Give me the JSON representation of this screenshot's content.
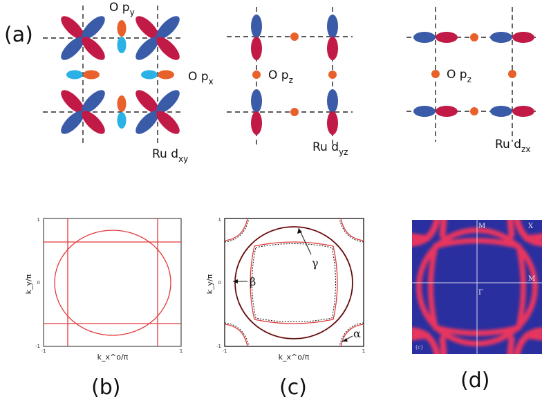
{
  "panel_labels": {
    "a": "(a)",
    "b": "(b)",
    "c": "(c)",
    "d": "(d)"
  },
  "orbitals": {
    "dxy": {
      "op_y": "O p",
      "op_y_sub": "y",
      "op_x": "O p",
      "op_x_sub": "x",
      "ru": "Ru d",
      "ru_sub": "xy"
    },
    "dyz": {
      "op_z": "O p",
      "op_z_sub": "z",
      "ru": "Ru d",
      "ru_sub": "yz"
    },
    "dzx": {
      "op_z": "O p",
      "op_z_sub": "z",
      "ru": "Ru d",
      "ru_sub": "zx"
    }
  },
  "plot_b": {
    "ylabel": "k_y/π",
    "xlabel": "k_x^o/π",
    "tick_min": "-1",
    "tick_zero": "0",
    "tick_max": "1"
  },
  "plot_c": {
    "ylabel": "k_y/π",
    "xlabel": "k_x^o/π",
    "tick_min": "-1",
    "tick_zero": "0",
    "tick_max": "1",
    "labels": {
      "gamma": "γ",
      "beta": "β",
      "alpha": "α"
    }
  },
  "plot_d": {
    "labels": {
      "M_top": "M",
      "X": "X",
      "Gamma": "Γ",
      "M_right": "M",
      "corner": "(c)"
    }
  },
  "colors": {
    "blue": "#3a5ba8",
    "red": "#c21a47",
    "cyan": "#2ab2e6",
    "orange": "#e8612b",
    "fs_red": "#e0383a",
    "arpes_bg": "#2a2fa0",
    "arpes_fs": "#e8365f"
  }
}
